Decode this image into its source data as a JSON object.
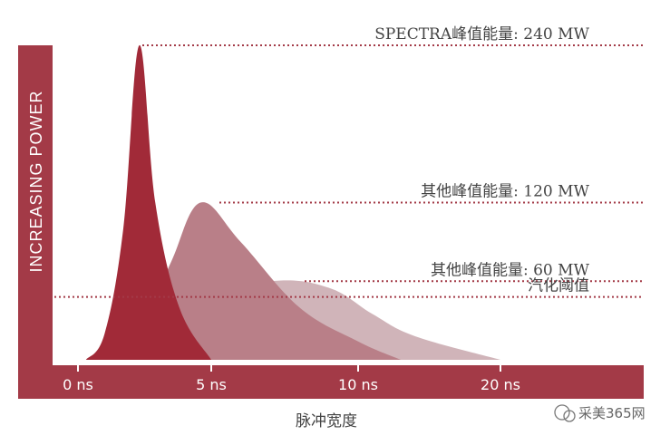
{
  "chart_data": {
    "type": "area",
    "xlabel": "脉冲宽度",
    "ylabel": "INCREASING POWER",
    "x_ticks": [
      {
        "label": "0 ns",
        "value": 0
      },
      {
        "label": "5 ns",
        "value": 5
      },
      {
        "label": "10 ns",
        "value": 10
      },
      {
        "label": "20 ns",
        "value": 20
      }
    ],
    "series": [
      {
        "id": "low",
        "color": "#d0b4b9",
        "points": [
          [
            1.0,
            0
          ],
          [
            3.5,
            45
          ],
          [
            7.0,
            60
          ],
          [
            9.0,
            55
          ],
          [
            11.0,
            35
          ],
          [
            14.0,
            18
          ],
          [
            20.0,
            0
          ]
        ]
      },
      {
        "id": "mid",
        "color": "#b97f88",
        "points": [
          [
            1.2,
            0
          ],
          [
            2.5,
            30
          ],
          [
            3.5,
            75
          ],
          [
            4.6,
            120
          ],
          [
            6.0,
            90
          ],
          [
            8.0,
            40
          ],
          [
            10.0,
            14
          ],
          [
            13.0,
            0
          ]
        ]
      },
      {
        "id": "high",
        "color": "#a12a38",
        "points": [
          [
            0.3,
            0
          ],
          [
            1.0,
            20
          ],
          [
            1.7,
            100
          ],
          [
            2.3,
            240
          ],
          [
            2.9,
            120
          ],
          [
            3.8,
            40
          ],
          [
            5.0,
            0
          ]
        ]
      }
    ],
    "reference_lines": [
      {
        "label": "SPECTRA峰值能量: 240 MW",
        "value": 240
      },
      {
        "label": "其他峰值能量: 120 MW",
        "value": 120
      },
      {
        "label": "其他峰值能量: 60 MW",
        "value": 60
      },
      {
        "label": "汽化阈值",
        "value": 48
      }
    ],
    "ylim": [
      0,
      240
    ],
    "colors": {
      "axis": "#a33a47",
      "dotted": "#a33a47"
    }
  },
  "watermark": "采美365网"
}
